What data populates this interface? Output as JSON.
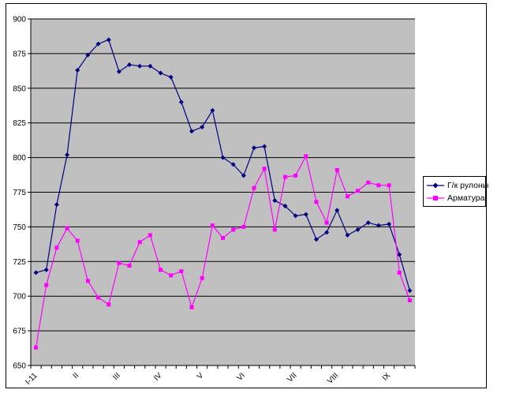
{
  "page": {
    "background": "#FFFFFF",
    "frame_border_color": "#000000"
  },
  "legend": {
    "position": "right",
    "border_color": "#000000",
    "background": "#FFFFFF"
  },
  "chart_data": {
    "type": "line",
    "title": "",
    "xlabel": "",
    "ylabel": "",
    "ylim": [
      650,
      900
    ],
    "ytick_step": 25,
    "grid": "horizontal",
    "grid_color": "#000000",
    "plot_bg": "#C0C0C0",
    "axis_color": "#000000",
    "categories": [
      "I-11",
      "",
      "",
      "",
      "II",
      "",
      "",
      "",
      "III",
      "",
      "",
      "",
      "IV",
      "",
      "",
      "",
      "V",
      "",
      "",
      "",
      "VI",
      "",
      "",
      "",
      "",
      "VII",
      "",
      "",
      "",
      "VIII",
      "",
      "",
      "",
      "",
      "IX",
      "",
      ""
    ],
    "series": [
      {
        "name": "Г/к рулоны",
        "color": "#000080",
        "marker": "diamond",
        "values": [
          717,
          719,
          766,
          802,
          863,
          874,
          882,
          885,
          862,
          867,
          866,
          866,
          861,
          858,
          840,
          819,
          822,
          834,
          800,
          795,
          787,
          807,
          808,
          769,
          765,
          758,
          759,
          741,
          746,
          762,
          744,
          748,
          753,
          751,
          752,
          730,
          704
        ]
      },
      {
        "name": "Арматура",
        "color": "#FF00FF",
        "marker": "square",
        "values": [
          663,
          708,
          735,
          749,
          740,
          711,
          699,
          694,
          724,
          722,
          739,
          744,
          719,
          715,
          718,
          692,
          713,
          751,
          742,
          748,
          750,
          778,
          792,
          748,
          786,
          787,
          801,
          768,
          753,
          791,
          772,
          776,
          782,
          780,
          780,
          717,
          697
        ]
      }
    ]
  }
}
